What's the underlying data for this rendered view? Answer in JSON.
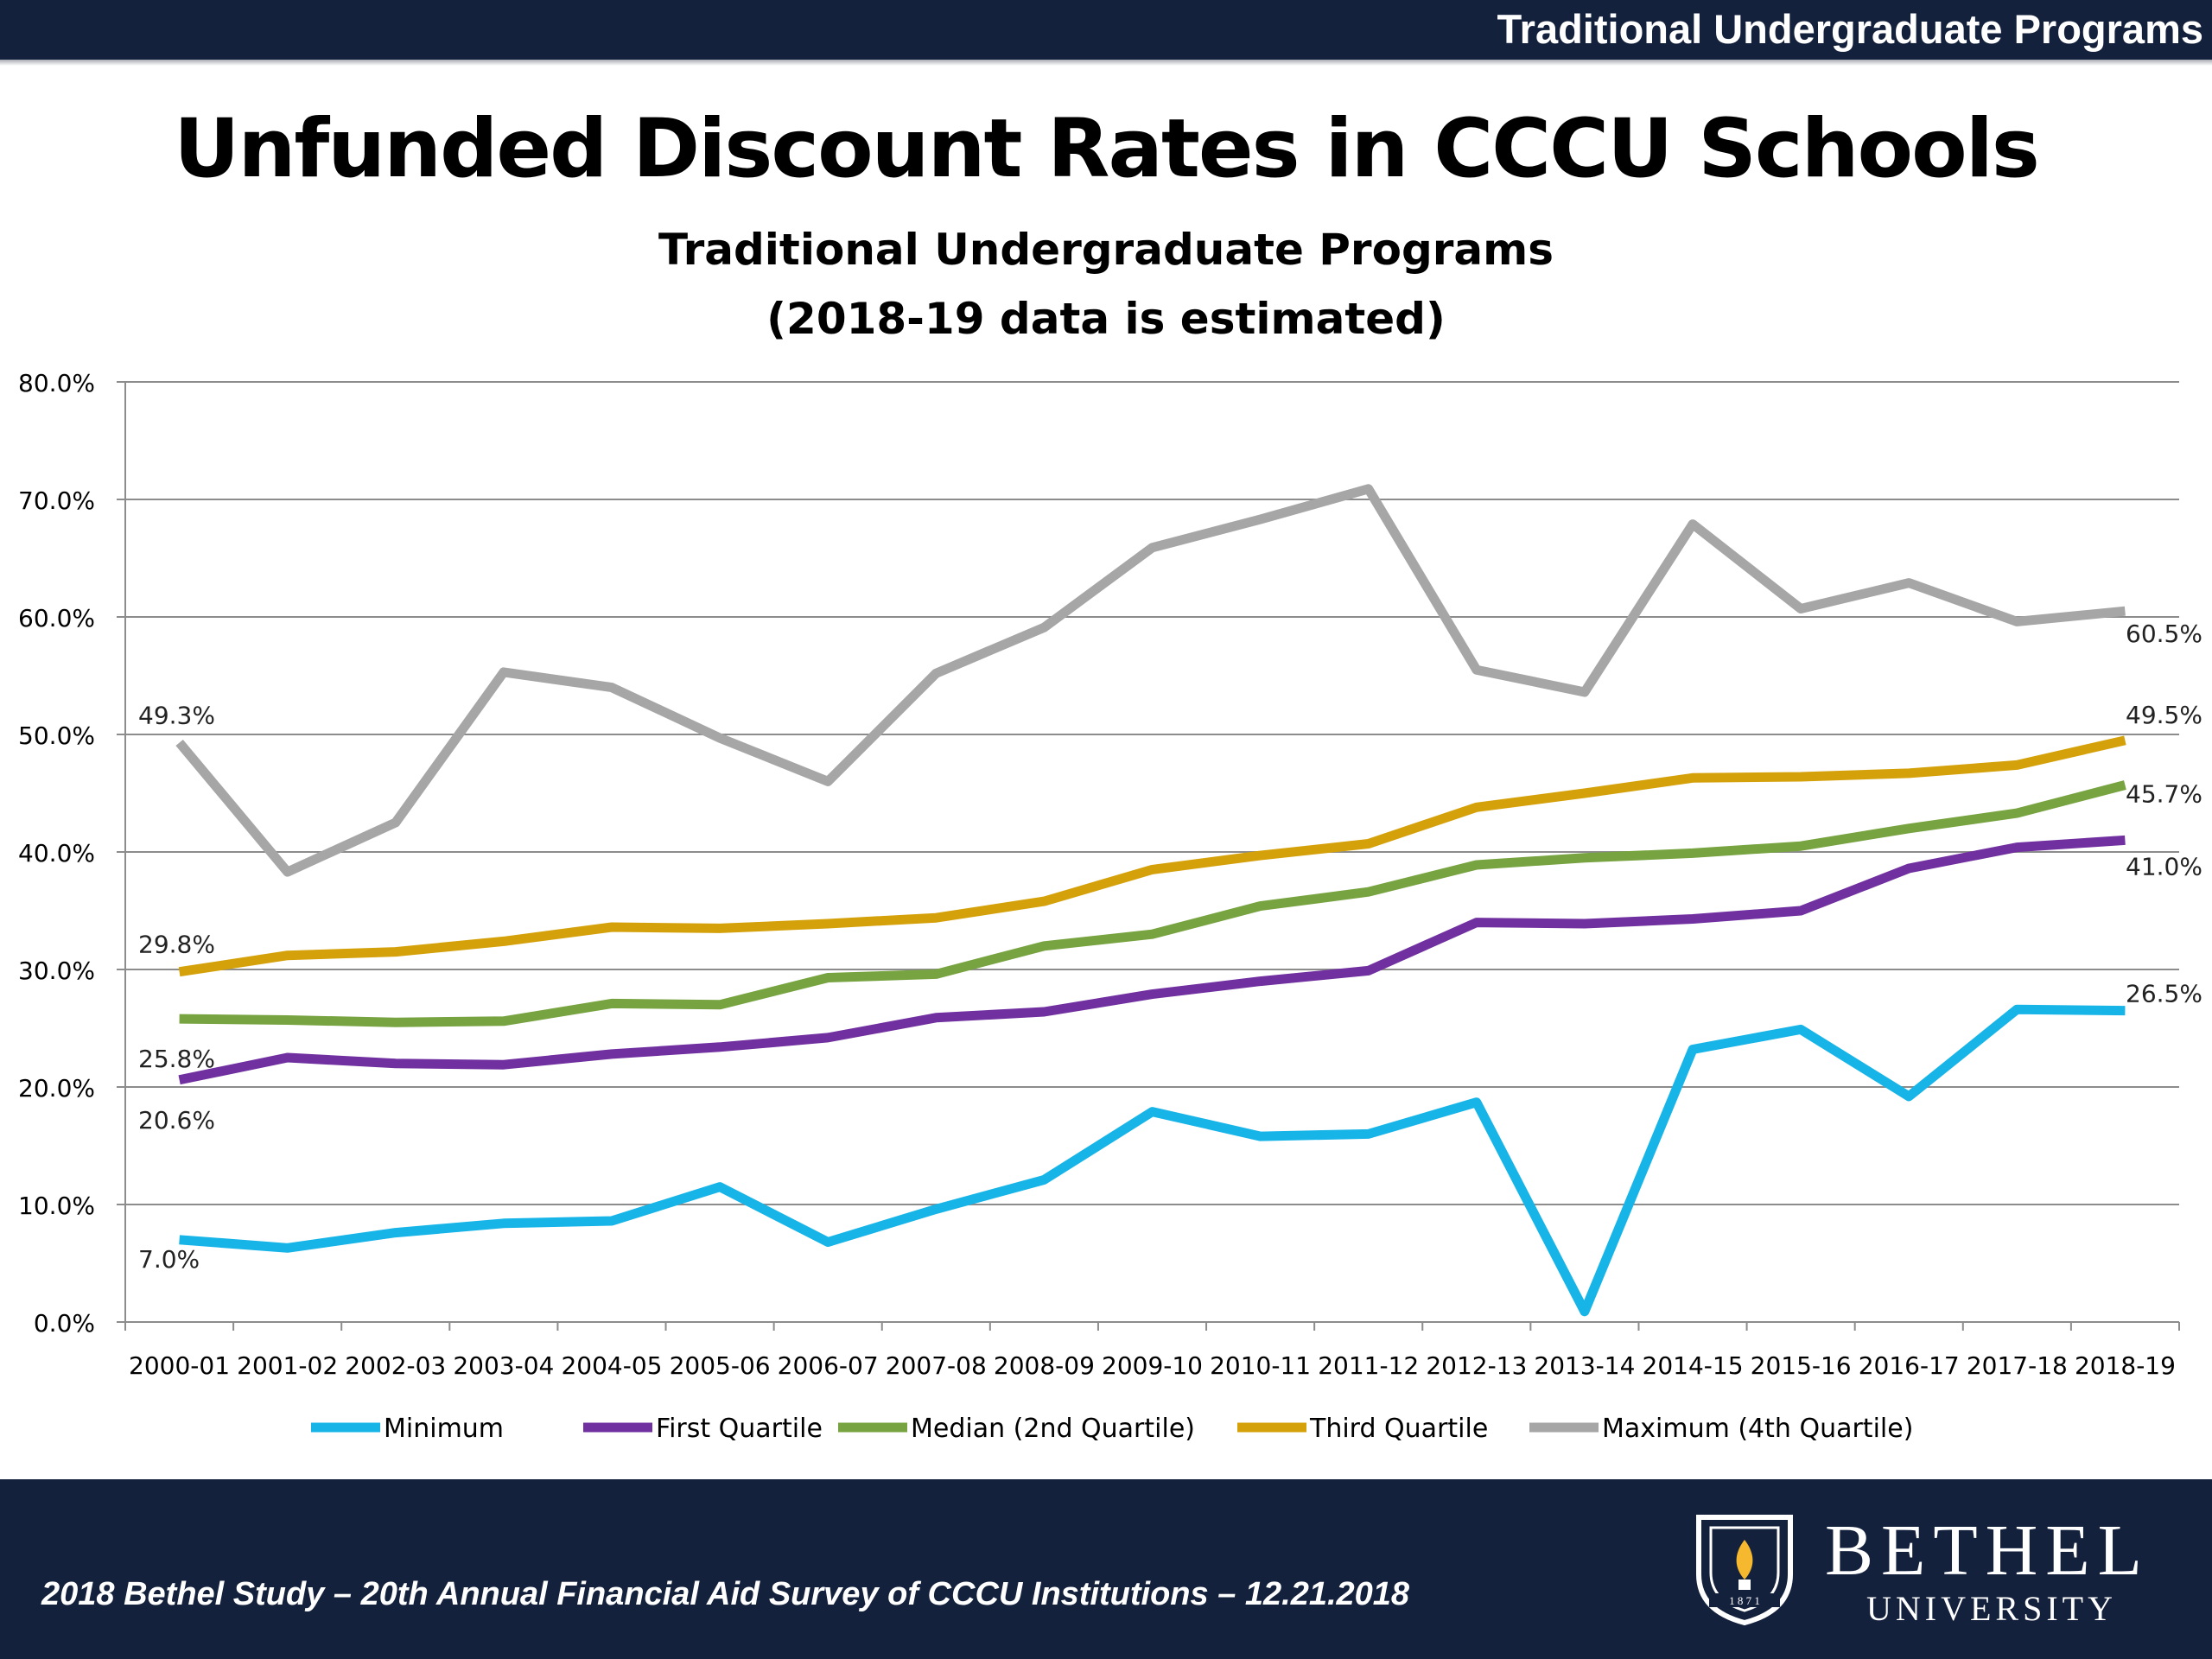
{
  "header": {
    "bar_title": "Traditional Undergraduate Programs"
  },
  "chart_data": {
    "type": "line",
    "title": "Unfunded Discount Rates in CCCU Schools",
    "subtitle_lines": [
      "Traditional Undergraduate Programs",
      "(2018-19 data is estimated)"
    ],
    "xlabel": "",
    "ylabel": "",
    "ylim": [
      0,
      80
    ],
    "y_ticks": [
      "0.0%",
      "10.0%",
      "20.0%",
      "30.0%",
      "40.0%",
      "50.0%",
      "60.0%",
      "70.0%",
      "80.0%"
    ],
    "grid": true,
    "legend_position": "bottom",
    "categories": [
      "2000-01",
      "2001-02",
      "2002-03",
      "2003-04",
      "2004-05",
      "2005-06",
      "2006-07",
      "2007-08",
      "2008-09",
      "2009-10",
      "2010-11",
      "2011-12",
      "2012-13",
      "2013-14",
      "2014-15",
      "2015-16",
      "2016-17",
      "2017-18",
      "2018-19"
    ],
    "series": [
      {
        "name": "Minimum",
        "color": "#17b4e8",
        "values": [
          7.0,
          6.3,
          7.6,
          8.4,
          8.6,
          11.5,
          6.8,
          9.6,
          12.1,
          17.9,
          15.8,
          16.0,
          18.7,
          0.9,
          23.2,
          24.9,
          19.2,
          26.6,
          26.5
        ],
        "labels": {
          "first": "7.0%",
          "last": "26.5%"
        }
      },
      {
        "name": "First Quartile",
        "color": "#7030a0",
        "values": [
          20.6,
          22.5,
          22.0,
          21.9,
          22.8,
          23.4,
          24.2,
          25.9,
          26.4,
          27.9,
          29.0,
          29.9,
          34.0,
          33.9,
          34.3,
          35.0,
          38.6,
          40.4,
          41.0
        ],
        "labels": {
          "first": "20.6%",
          "last": "41.0%"
        }
      },
      {
        "name": "Median (2nd Quartile)",
        "color": "#77a340",
        "values": [
          25.8,
          25.7,
          25.5,
          25.6,
          27.1,
          27.0,
          29.3,
          29.6,
          32.0,
          33.0,
          35.4,
          36.6,
          38.9,
          39.5,
          39.9,
          40.5,
          42.0,
          43.3,
          45.7
        ],
        "labels": {
          "first": "25.8%",
          "last": "45.7%"
        }
      },
      {
        "name": "Third Quartile",
        "color": "#d4a10a",
        "values": [
          29.8,
          31.2,
          31.5,
          32.4,
          33.6,
          33.5,
          33.9,
          34.4,
          35.8,
          38.5,
          39.7,
          40.7,
          43.8,
          45.0,
          46.3,
          46.4,
          46.7,
          47.4,
          49.5
        ],
        "labels": {
          "first": "29.8%",
          "last": "49.5%"
        }
      },
      {
        "name": "Maximum (4th Quartile)",
        "color": "#a6a6a6",
        "values": [
          49.3,
          38.3,
          42.5,
          55.3,
          54.0,
          49.7,
          46.0,
          55.2,
          59.1,
          65.9,
          68.3,
          70.9,
          55.5,
          53.6,
          67.9,
          60.7,
          62.9,
          59.6,
          60.5
        ],
        "labels": {
          "first": "49.3%",
          "last": "60.5%"
        }
      }
    ]
  },
  "footer": {
    "citation": "2018 Bethel Study – 20th Annual Financial Aid Survey of CCCU Institutions – 12.21.2018",
    "logo_name": "BETHEL",
    "logo_sub": "UNIVERSITY",
    "logo_year": "1 8 7 1"
  }
}
